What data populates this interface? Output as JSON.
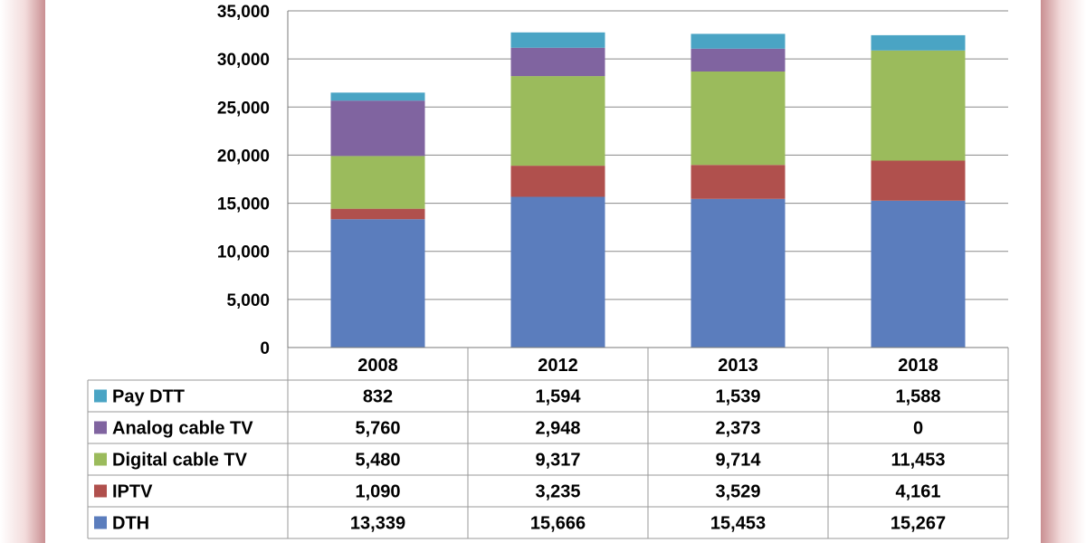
{
  "chart_data": {
    "type": "bar",
    "stacked": true,
    "categories": [
      "2008",
      "2012",
      "2013",
      "2018"
    ],
    "series": [
      {
        "name": "DTH",
        "color": "#5b7dbd",
        "values": [
          13339,
          15666,
          15453,
          15267
        ],
        "labels": [
          "13,339",
          "15,666",
          "15,453",
          "15,267"
        ]
      },
      {
        "name": "IPTV",
        "color": "#b0504d",
        "values": [
          1090,
          3235,
          3529,
          4161
        ],
        "labels": [
          "1,090",
          "3,235",
          "3,529",
          "4,161"
        ]
      },
      {
        "name": "Digital cable TV",
        "color": "#9bbb5c",
        "values": [
          5480,
          9317,
          9714,
          11453
        ],
        "labels": [
          "5,480",
          "9,317",
          "9,714",
          "11,453"
        ]
      },
      {
        "name": "Analog cable TV",
        "color": "#8064a0",
        "values": [
          5760,
          2948,
          2373,
          0
        ],
        "labels": [
          "5,760",
          "2,948",
          "2,373",
          "0"
        ]
      },
      {
        "name": "Pay DTT",
        "color": "#4aa4c4",
        "values": [
          832,
          1594,
          1539,
          1588
        ],
        "labels": [
          "832",
          "1,594",
          "1,539",
          "1,588"
        ]
      }
    ],
    "table_row_order": [
      "Pay DTT",
      "Analog cable TV",
      "Digital cable TV",
      "IPTV",
      "DTH"
    ],
    "ylim": [
      0,
      35000
    ],
    "yticks": [
      0,
      5000,
      10000,
      15000,
      20000,
      25000,
      30000,
      35000
    ],
    "ytick_labels": [
      "0",
      "5,000",
      "10,000",
      "15,000",
      "20,000",
      "25,000",
      "30,000",
      "35,000"
    ],
    "grid": true,
    "legend": "data table below chart"
  }
}
